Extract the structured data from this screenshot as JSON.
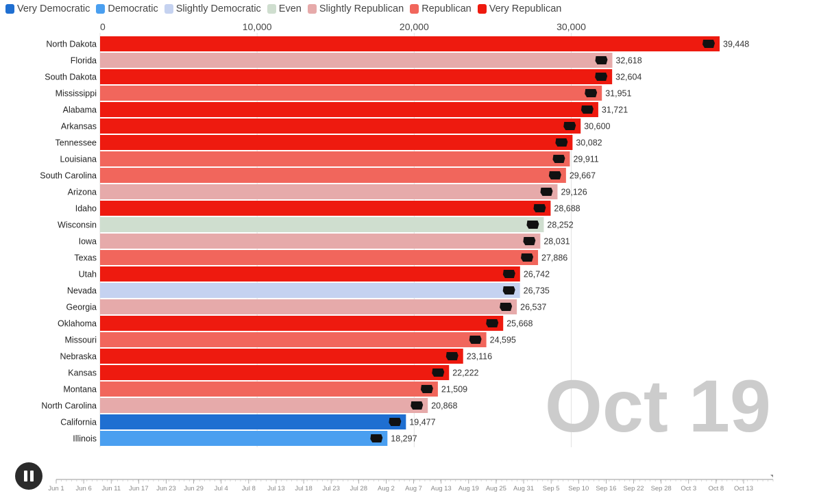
{
  "legend": [
    {
      "label": "Very Democratic",
      "color": "#1f6fd1"
    },
    {
      "label": "Democratic",
      "color": "#4a9ff0"
    },
    {
      "label": "Slightly Democratic",
      "color": "#c5d2f0"
    },
    {
      "label": "Even",
      "color": "#cfdecf"
    },
    {
      "label": "Slightly Republican",
      "color": "#e6aaaa"
    },
    {
      "label": "Republican",
      "color": "#f1665c"
    },
    {
      "label": "Very Republican",
      "color": "#ee1a0f"
    }
  ],
  "chart_data": {
    "type": "bar",
    "orientation": "horizontal",
    "x_ticks": [
      {
        "value": 0,
        "label": "0"
      },
      {
        "value": 10000,
        "label": "10,000"
      },
      {
        "value": 20000,
        "label": "20,000"
      },
      {
        "value": 30000,
        "label": "30,000"
      }
    ],
    "xlim": [
      0,
      39448
    ],
    "bars": [
      {
        "state": "North Dakota",
        "value": 39448,
        "label": "39,448",
        "color": "#ee1a0f",
        "icon": "north-dakota-shape-icon"
      },
      {
        "state": "Florida",
        "value": 32618,
        "label": "32,618",
        "color": "#e6aaaa",
        "icon": "florida-shape-icon"
      },
      {
        "state": "South Dakota",
        "value": 32604,
        "label": "32,604",
        "color": "#ee1a0f",
        "icon": "south-dakota-shape-icon"
      },
      {
        "state": "Mississippi",
        "value": 31951,
        "label": "31,951",
        "color": "#f1665c",
        "icon": "mississippi-shape-icon"
      },
      {
        "state": "Alabama",
        "value": 31721,
        "label": "31,721",
        "color": "#ee1a0f",
        "icon": "alabama-shape-icon"
      },
      {
        "state": "Arkansas",
        "value": 30600,
        "label": "30,600",
        "color": "#ee1a0f",
        "icon": "arkansas-shape-icon"
      },
      {
        "state": "Tennessee",
        "value": 30082,
        "label": "30,082",
        "color": "#ee1a0f",
        "icon": "tennessee-shape-icon"
      },
      {
        "state": "Louisiana",
        "value": 29911,
        "label": "29,911",
        "color": "#f1665c",
        "icon": "louisiana-shape-icon"
      },
      {
        "state": "South Carolina",
        "value": 29667,
        "label": "29,667",
        "color": "#f1665c",
        "icon": "south-carolina-shape-icon"
      },
      {
        "state": "Arizona",
        "value": 29126,
        "label": "29,126",
        "color": "#e6aaaa",
        "icon": "arizona-shape-icon"
      },
      {
        "state": "Idaho",
        "value": 28688,
        "label": "28,688",
        "color": "#ee1a0f",
        "icon": "idaho-shape-icon"
      },
      {
        "state": "Wisconsin",
        "value": 28252,
        "label": "28,252",
        "color": "#cfdecf",
        "icon": "wisconsin-shape-icon"
      },
      {
        "state": "Iowa",
        "value": 28031,
        "label": "28,031",
        "color": "#e6aaaa",
        "icon": "iowa-shape-icon"
      },
      {
        "state": "Texas",
        "value": 27886,
        "label": "27,886",
        "color": "#f1665c",
        "icon": "texas-shape-icon"
      },
      {
        "state": "Utah",
        "value": 26742,
        "label": "26,742",
        "color": "#ee1a0f",
        "icon": "utah-shape-icon"
      },
      {
        "state": "Nevada",
        "value": 26735,
        "label": "26,735",
        "color": "#c5d2f0",
        "icon": "nevada-shape-icon"
      },
      {
        "state": "Georgia",
        "value": 26537,
        "label": "26,537",
        "color": "#e6aaaa",
        "icon": "georgia-shape-icon"
      },
      {
        "state": "Oklahoma",
        "value": 25668,
        "label": "25,668",
        "color": "#ee1a0f",
        "icon": "oklahoma-shape-icon"
      },
      {
        "state": "Missouri",
        "value": 24595,
        "label": "24,595",
        "color": "#f1665c",
        "icon": "missouri-shape-icon"
      },
      {
        "state": "Nebraska",
        "value": 23116,
        "label": "23,116",
        "color": "#ee1a0f",
        "icon": "nebraska-shape-icon"
      },
      {
        "state": "Kansas",
        "value": 22222,
        "label": "22,222",
        "color": "#ee1a0f",
        "icon": "kansas-shape-icon"
      },
      {
        "state": "Montana",
        "value": 21509,
        "label": "21,509",
        "color": "#f1665c",
        "icon": "montana-shape-icon"
      },
      {
        "state": "North Carolina",
        "value": 20868,
        "label": "20,868",
        "color": "#e6aaaa",
        "icon": "north-carolina-shape-icon"
      },
      {
        "state": "California",
        "value": 19477,
        "label": "19,477",
        "color": "#1f6fd1",
        "icon": "california-shape-icon"
      },
      {
        "state": "Illinois",
        "value": 18297,
        "label": "18,297",
        "color": "#4a9ff0",
        "icon": "illinois-shape-icon"
      }
    ],
    "current_date": "Oct 19",
    "timeline": {
      "labels": [
        "Jun 1",
        "Jun 6",
        "Jun 11",
        "Jun 17",
        "Jun 23",
        "Jun 29",
        "Jul 4",
        "Jul 8",
        "Jul 13",
        "Jul 18",
        "Jul 23",
        "Jul 28",
        "Aug 2",
        "Aug 7",
        "Aug 13",
        "Aug 19",
        "Aug 25",
        "Aug 31",
        "Sep 5",
        "Sep 10",
        "Sep 16",
        "Sep 22",
        "Sep 28",
        "Oct 3",
        "Oct 8",
        "Oct 13"
      ],
      "progress": 1.0
    },
    "grid": true,
    "legend_position": "top-left"
  },
  "controls": {
    "pause_icon": "pause-icon"
  }
}
